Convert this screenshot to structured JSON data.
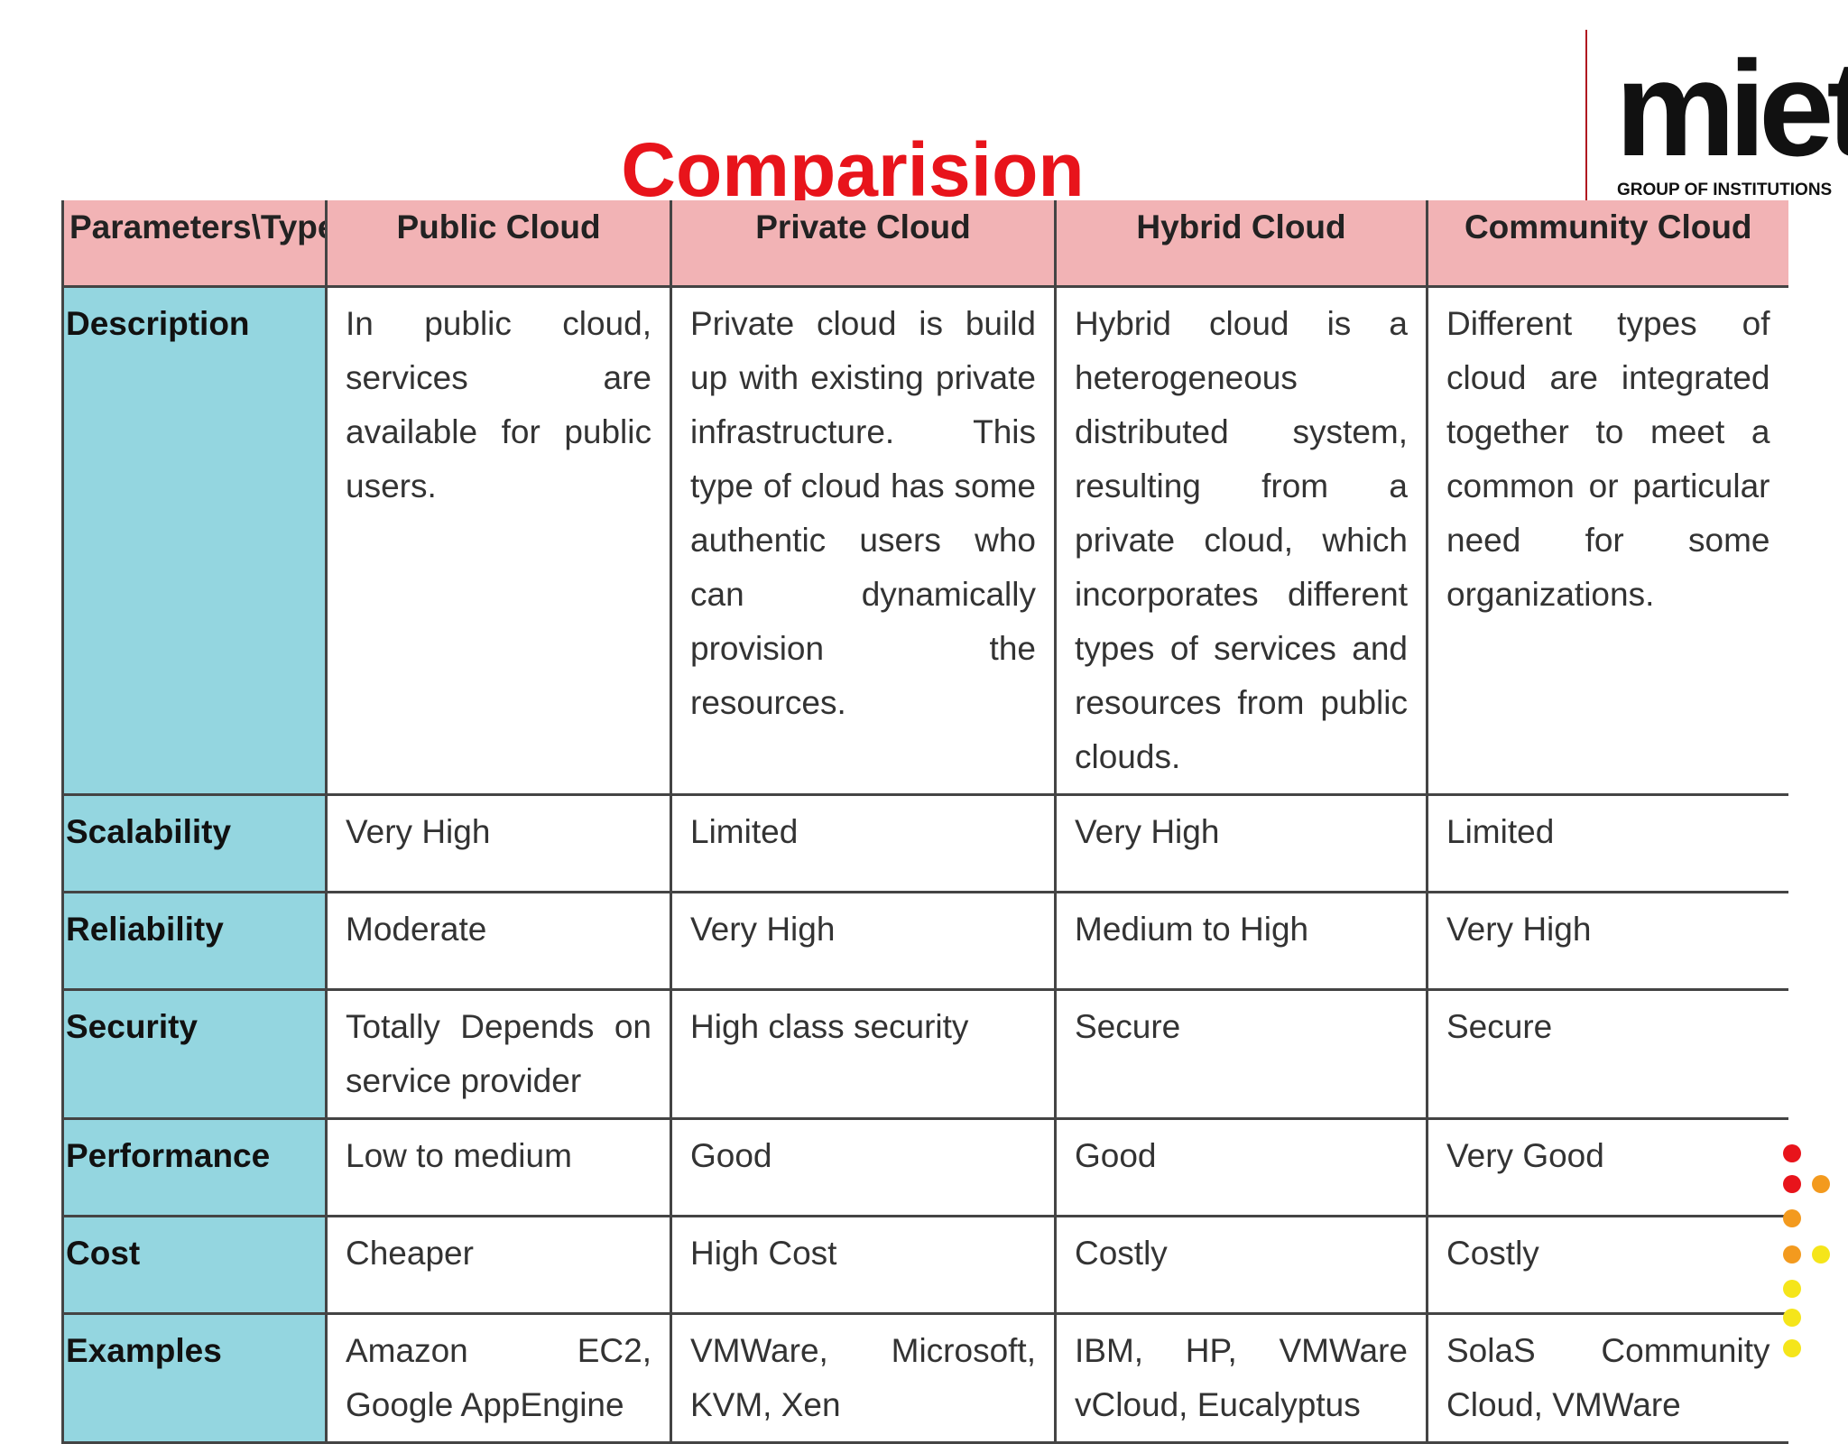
{
  "header": {
    "title": "Comparision"
  },
  "logo": {
    "name": "miet",
    "tagline": "GROUP OF INSTITUTIONS"
  },
  "table": {
    "columns": [
      "Parameters\\Type",
      "Public Cloud",
      "Private Cloud",
      "Hybrid Cloud",
      "Community Cloud"
    ],
    "rows": [
      [
        "Description",
        "In public cloud, services are available for public users.",
        "Private cloud is build up with existing private infrastructure. This type of cloud has some authentic users who can dynamically provision the resources.",
        "Hybrid cloud is a heterogeneous distributed system, resulting from a private cloud, which incorporates different types of services and resources from public clouds.",
        "Different types of cloud are integrated together to meet a common or particular need for some organizations."
      ],
      [
        "Scalability",
        "Very High",
        "Limited",
        "Very High",
        "Limited"
      ],
      [
        "Reliability",
        "Moderate",
        "Very High",
        "Medium to High",
        "Very High"
      ],
      [
        "Security",
        "Totally Depends on service provider",
        "High class security",
        "Secure",
        "Secure"
      ],
      [
        "Performance",
        "Low to medium",
        "Good",
        "Good",
        "Very Good"
      ],
      [
        "Cost",
        "Cheaper",
        "High Cost",
        "Costly",
        "Costly"
      ],
      [
        "Examples",
        "Amazon EC2, Google AppEngine",
        "VMWare, Microsoft, KVM, Xen",
        "IBM, HP, VMWare vCloud, Eucalyptus",
        "SolaS Community Cloud, VMWare"
      ]
    ]
  }
}
